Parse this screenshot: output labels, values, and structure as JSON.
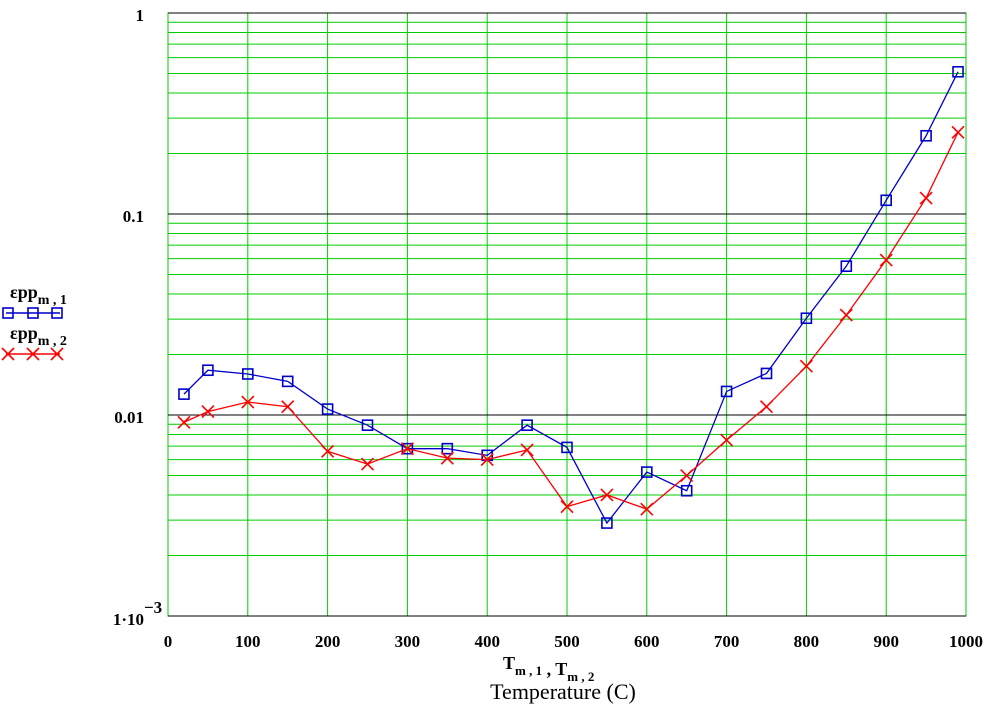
{
  "chart_data": {
    "type": "line",
    "xlabel": "Temperature (C)",
    "xlim": [
      0,
      1000
    ],
    "ylim": [
      0.001,
      1
    ],
    "yscale": "log",
    "grid": true,
    "x_tick_labels": [
      "0",
      "100",
      "200",
      "300",
      "400",
      "500",
      "600",
      "700",
      "800",
      "900",
      "1000"
    ],
    "y_tick_labels": [
      {
        "value": 1,
        "text": "1"
      },
      {
        "value": 0.1,
        "text": "0.1"
      },
      {
        "value": 0.01,
        "text": "0.01"
      },
      {
        "value": 0.001,
        "base": "1·10",
        "exp": "−3"
      }
    ],
    "x_variable_label": {
      "parts": [
        {
          "main": "T",
          "sub": "m , 1"
        },
        {
          "main": " , T",
          "sub": "m , 2"
        }
      ]
    },
    "legend_position": "left",
    "series": [
      {
        "name": "εpp m , 1",
        "legend_main": "εpp",
        "legend_sub": "m , 1",
        "color": "#0000cc",
        "marker": "square",
        "x": [
          20,
          50,
          100,
          150,
          200,
          250,
          300,
          350,
          400,
          450,
          500,
          550,
          600,
          650,
          700,
          750,
          800,
          850,
          900,
          950,
          990
        ],
        "y": [
          0.0127,
          0.0167,
          0.016,
          0.0147,
          0.0107,
          0.0089,
          0.0068,
          0.0068,
          0.0063,
          0.0089,
          0.0069,
          0.0029,
          0.0052,
          0.0042,
          0.0131,
          0.0161,
          0.0303,
          0.055,
          0.117,
          0.245,
          0.51
        ]
      },
      {
        "name": "εpp m , 2",
        "legend_main": "εpp",
        "legend_sub": "m , 2",
        "color": "#ff0000",
        "marker": "x",
        "x": [
          20,
          50,
          100,
          150,
          200,
          250,
          300,
          350,
          400,
          450,
          500,
          550,
          600,
          650,
          700,
          750,
          800,
          850,
          900,
          950,
          990
        ],
        "y": [
          0.0092,
          0.0104,
          0.0116,
          0.011,
          0.0066,
          0.0057,
          0.0068,
          0.0061,
          0.006,
          0.0067,
          0.0035,
          0.004,
          0.0034,
          0.005,
          0.0075,
          0.011,
          0.0175,
          0.0314,
          0.059,
          0.12,
          0.255
        ]
      }
    ]
  }
}
